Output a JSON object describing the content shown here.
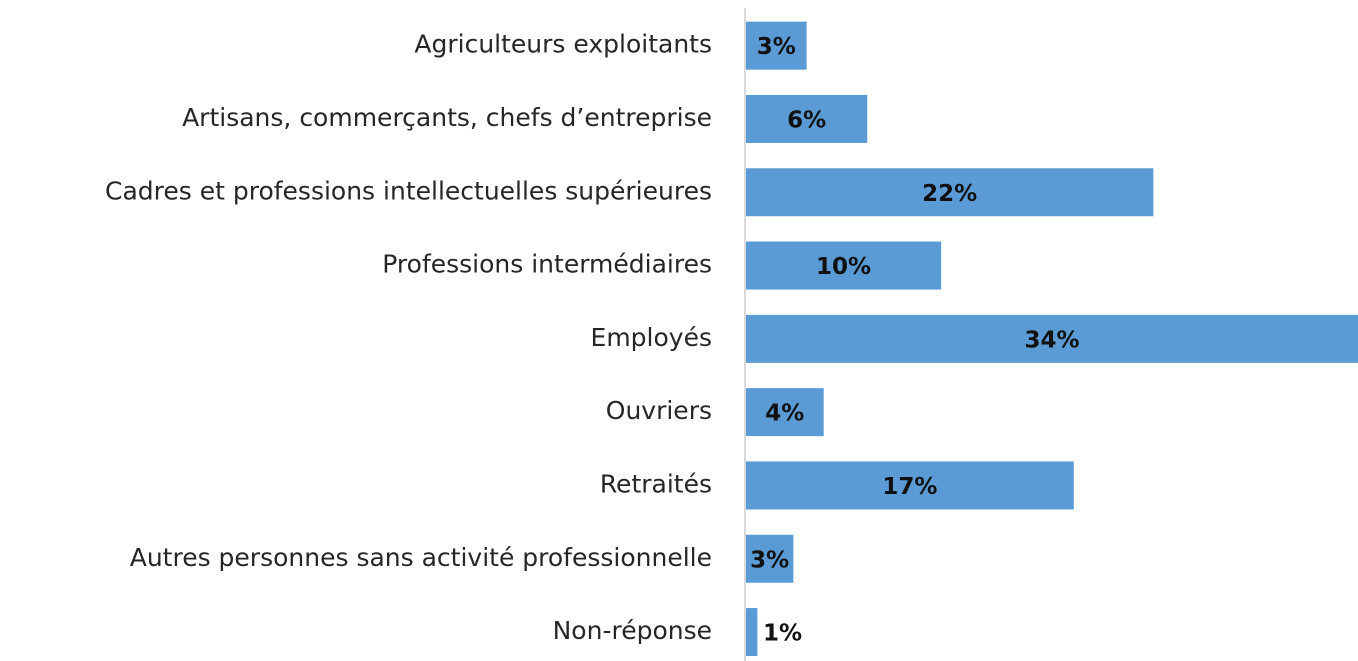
{
  "chart_data": {
    "type": "hbar",
    "categories": [
      "Agriculteurs exploitants",
      "Artisans, commerçants, chefs d’entreprise",
      "Cadres et professions intellectuelles supérieures",
      "Professions intermédiaires",
      "Employés",
      "Ouvriers",
      "Retraités",
      "Autres personnes sans activité professionnelle",
      "Non-réponse"
    ],
    "values": [
      3.2,
      6.4,
      21.5,
      10.3,
      34,
      4.1,
      17.3,
      2.5,
      0.6
    ],
    "value_labels": [
      "3%",
      "6%",
      "22%",
      "10%",
      "34%",
      "4%",
      "17%",
      "3%",
      "1%"
    ],
    "color": "#5b9bd5",
    "xlim": [
      0,
      32.3
    ]
  }
}
